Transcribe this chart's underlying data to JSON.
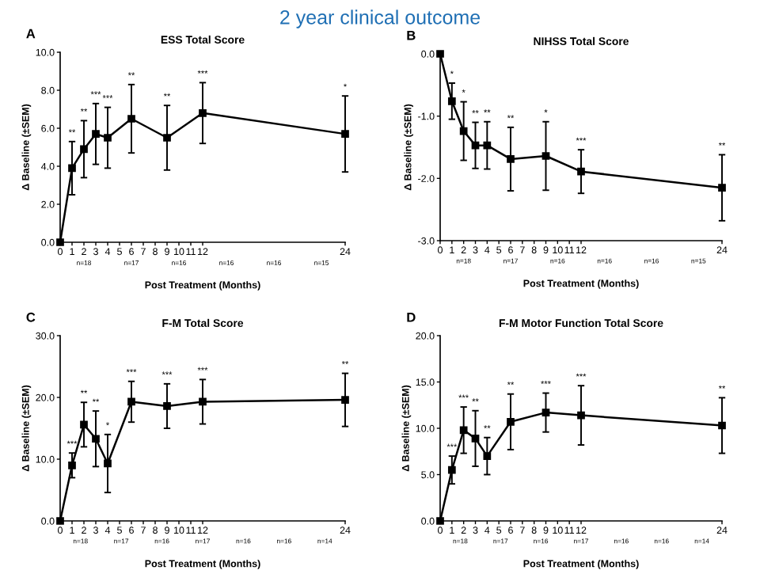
{
  "chart_data": [
    {
      "type": "other",
      "title": "2 year clinical outcome"
    },
    {
      "type": "line",
      "title": "ESS Total Score",
      "xlabel": "Post Treatment (Months)",
      "ylabel": "Δ Baseline (±SEM)",
      "marker": "square",
      "line_style": "solid",
      "x": [
        0,
        1,
        2,
        3,
        4,
        6,
        9,
        12,
        24
      ],
      "xlim": [
        0,
        24
      ],
      "xticks": [
        0,
        1,
        2,
        3,
        4,
        5,
        6,
        7,
        8,
        9,
        10,
        11,
        12,
        24
      ],
      "ylim": [
        0,
        10
      ],
      "yticks": [
        {
          "value": 0,
          "label": "0.0"
        },
        {
          "value": 2,
          "label": "2.0"
        },
        {
          "value": 4,
          "label": "4.0"
        },
        {
          "value": 6,
          "label": "6.0"
        },
        {
          "value": 8,
          "label": "8.0"
        },
        {
          "value": 10,
          "label": "10.0"
        }
      ],
      "series": [
        {
          "color": "#000000",
          "values": [
            0,
            3.9,
            4.9,
            5.7,
            5.5,
            6.5,
            5.5,
            6.8,
            5.7
          ],
          "errors": [
            null,
            1.4,
            1.5,
            1.6,
            1.6,
            1.8,
            1.7,
            1.6,
            2.0
          ]
        }
      ],
      "annotations": [
        "A",
        {
          "text": "**",
          "x": 1,
          "y": 5.3
        },
        {
          "text": "**",
          "x": 2,
          "y": 6.4
        },
        {
          "text": "***",
          "x": 3,
          "y": 7.3
        },
        {
          "text": "***",
          "x": 4,
          "y": 7.1
        },
        {
          "text": "**",
          "x": 6,
          "y": 8.3
        },
        {
          "text": "**",
          "x": 9,
          "y": 7.2
        },
        {
          "text": "***",
          "x": 12,
          "y": 8.4
        },
        {
          "text": "*",
          "x": 24,
          "y": 7.7
        },
        "n=18",
        "n=17",
        "n=16",
        "n=16",
        "n=16",
        "n=15"
      ]
    },
    {
      "type": "line",
      "title": "NIHSS Total Score",
      "xlabel": "Post Treatment (Months)",
      "ylabel": "Δ Baseline (±SEM)",
      "marker": "square",
      "line_style": "solid",
      "x": [
        0,
        1,
        2,
        3,
        4,
        6,
        9,
        12,
        24
      ],
      "xlim": [
        0,
        24
      ],
      "xticks": [
        0,
        1,
        2,
        3,
        4,
        5,
        6,
        7,
        8,
        9,
        10,
        11,
        12,
        24
      ],
      "ylim": [
        -3,
        0
      ],
      "yticks": [
        {
          "value": 0,
          "label": "0.0"
        },
        {
          "value": -1,
          "label": "-1.0"
        },
        {
          "value": -2,
          "label": "-2.0"
        },
        {
          "value": -3,
          "label": "-3.0"
        }
      ],
      "series": [
        {
          "color": "#000000",
          "values": [
            0,
            -0.76,
            -1.24,
            -1.47,
            -1.47,
            -1.69,
            -1.64,
            -1.89,
            -2.15
          ],
          "errors": [
            null,
            0.29,
            0.47,
            0.37,
            0.38,
            0.51,
            0.55,
            0.35,
            0.53
          ]
        }
      ],
      "annotations": [
        "B",
        {
          "text": "*",
          "x": 1,
          "y": -0.47
        },
        {
          "text": "*",
          "x": 2,
          "y": -0.77
        },
        {
          "text": "**",
          "x": 3,
          "y": -1.1
        },
        {
          "text": "**",
          "x": 4,
          "y": -1.09
        },
        {
          "text": "**",
          "x": 6,
          "y": -1.18
        },
        {
          "text": "*",
          "x": 9,
          "y": -1.09
        },
        {
          "text": "***",
          "x": 12,
          "y": -1.54
        },
        {
          "text": "**",
          "x": 24,
          "y": -1.62
        },
        "n=18",
        "n=17",
        "n=16",
        "n=16",
        "n=16",
        "n=15"
      ]
    },
    {
      "type": "line",
      "title": "F-M Total Score",
      "xlabel": "Post Treatment (Months)",
      "ylabel": "Δ Baseline (±SEM)",
      "marker": "square",
      "line_style": "solid",
      "x": [
        0,
        1,
        2,
        3,
        4,
        6,
        9,
        12,
        24
      ],
      "xlim": [
        0,
        24
      ],
      "xticks": [
        0,
        1,
        2,
        3,
        4,
        5,
        6,
        7,
        8,
        9,
        10,
        11,
        12,
        24
      ],
      "ylim": [
        0,
        30
      ],
      "yticks": [
        {
          "value": 0,
          "label": "0.0"
        },
        {
          "value": 10,
          "label": "10.0"
        },
        {
          "value": 20,
          "label": "20.0"
        },
        {
          "value": 30,
          "label": "30.0"
        }
      ],
      "series": [
        {
          "color": "#000000",
          "values": [
            0,
            9.0,
            15.6,
            13.3,
            9.3,
            19.3,
            18.6,
            19.3,
            19.6
          ],
          "errors": [
            null,
            2.0,
            3.6,
            4.5,
            4.7,
            3.3,
            3.6,
            3.6,
            4.3
          ]
        }
      ],
      "annotations": [
        "C",
        {
          "text": "***",
          "x": 1,
          "y": 11.0
        },
        {
          "text": "**",
          "x": 2,
          "y": 19.2
        },
        {
          "text": "**",
          "x": 3,
          "y": 17.8
        },
        {
          "text": "*",
          "x": 4,
          "y": 14.0
        },
        {
          "text": "***",
          "x": 6,
          "y": 22.6
        },
        {
          "text": "***",
          "x": 9,
          "y": 22.2
        },
        {
          "text": "***",
          "x": 12,
          "y": 22.9
        },
        {
          "text": "**",
          "x": 24,
          "y": 23.9
        },
        "n=18",
        "n=17",
        "n=16",
        "n=17",
        "n=16",
        "n=16",
        "n=14"
      ]
    },
    {
      "type": "line",
      "title": "F-M Motor Function Total Score",
      "xlabel": "Post Treatment (Months)",
      "ylabel": "Δ Baseline (±SEM)",
      "marker": "square",
      "line_style": "solid",
      "x": [
        0,
        1,
        2,
        3,
        4,
        6,
        9,
        12,
        24
      ],
      "xlim": [
        0,
        24
      ],
      "xticks": [
        0,
        1,
        2,
        3,
        4,
        5,
        6,
        7,
        8,
        9,
        10,
        11,
        12,
        24
      ],
      "ylim": [
        0,
        20
      ],
      "yticks": [
        {
          "value": 0,
          "label": "0.0"
        },
        {
          "value": 5,
          "label": "5.0"
        },
        {
          "value": 10,
          "label": "10.0"
        },
        {
          "value": 15,
          "label": "15.0"
        },
        {
          "value": 20,
          "label": "20.0"
        }
      ],
      "series": [
        {
          "color": "#000000",
          "values": [
            0,
            5.5,
            9.8,
            8.9,
            7.0,
            10.7,
            11.7,
            11.4,
            10.3
          ],
          "errors": [
            null,
            1.5,
            2.5,
            3.0,
            2.0,
            3.0,
            2.1,
            3.2,
            3.0
          ]
        }
      ],
      "annotations": [
        "D",
        {
          "text": "***",
          "x": 1,
          "y": 7.0
        },
        {
          "text": "***",
          "x": 2,
          "y": 12.3
        },
        {
          "text": "**",
          "x": 3,
          "y": 11.9
        },
        {
          "text": "**",
          "x": 4,
          "y": 9.0
        },
        {
          "text": "**",
          "x": 6,
          "y": 13.7
        },
        {
          "text": "***",
          "x": 9,
          "y": 13.8
        },
        {
          "text": "***",
          "x": 12,
          "y": 14.6
        },
        {
          "text": "**",
          "x": 24,
          "y": 13.3
        },
        "n=18",
        "n=17",
        "n=16",
        "n=17",
        "n=16",
        "n=16",
        "n=14"
      ]
    }
  ]
}
